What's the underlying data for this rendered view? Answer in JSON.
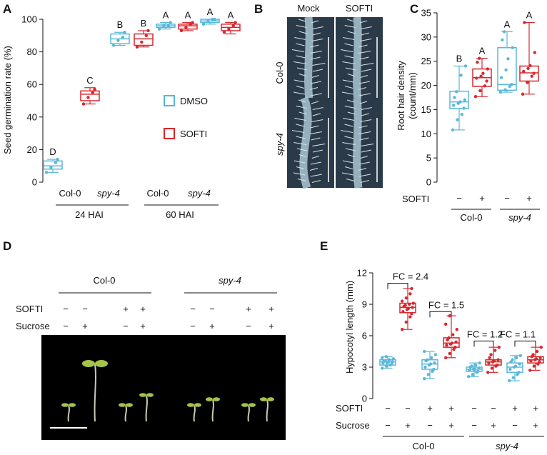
{
  "panels": {
    "a": "A",
    "b": "B",
    "c": "C",
    "d": "D",
    "e": "E"
  },
  "colors": {
    "dmso": "#5ab8d8",
    "softi": "#d8282e"
  },
  "chart_data": [
    {
      "id": "A",
      "type": "box",
      "ylabel": "Seed germination rate (%)",
      "ylim": [
        0,
        100
      ],
      "yticks": [
        0,
        20,
        40,
        60,
        80,
        100
      ],
      "legend": [
        {
          "label": "DMSO",
          "color": "#5ab8d8"
        },
        {
          "label": "SOFTI",
          "color": "#d8282e"
        }
      ],
      "legend_position": "right",
      "genotype_labels": [
        "Col-0",
        "spy-4",
        "Col-0",
        "spy-4"
      ],
      "time_labels": [
        "24 HAI",
        "60 HAI"
      ],
      "groups": [
        {
          "genotype": "Col-0",
          "time": "24 HAI",
          "treatment": "DMSO",
          "color": "#5ab8d8",
          "q1": 8,
          "median": 10,
          "q3": 13,
          "whisker": [
            6,
            14
          ],
          "points": [
            6,
            9,
            12,
            14
          ],
          "letter": "D"
        },
        {
          "genotype": "Col-0",
          "time": "24 HAI",
          "treatment": "SOFTI",
          "color": "#d8282e",
          "q1": 50,
          "median": 54,
          "q3": 56,
          "whisker": [
            48,
            58
          ],
          "points": [
            48,
            52,
            55,
            57
          ],
          "letter": "C"
        },
        {
          "genotype": "spy-4",
          "time": "24 HAI",
          "treatment": "DMSO",
          "color": "#5ab8d8",
          "q1": 85,
          "median": 88,
          "q3": 91,
          "whisker": [
            84,
            92
          ],
          "points": [
            84,
            87,
            89,
            92
          ],
          "letter": "B"
        },
        {
          "genotype": "spy-4",
          "time": "24 HAI",
          "treatment": "SOFTI",
          "color": "#d8282e",
          "q1": 84,
          "median": 88,
          "q3": 91,
          "whisker": [
            83,
            93
          ],
          "points": [
            83,
            86,
            90,
            93
          ],
          "letter": "B"
        },
        {
          "genotype": "Col-0",
          "time": "60 HAI",
          "treatment": "DMSO",
          "color": "#5ab8d8",
          "q1": 95,
          "median": 96,
          "q3": 97,
          "whisker": [
            94,
            98
          ],
          "points": [
            94,
            96,
            96,
            98
          ],
          "letter": "A"
        },
        {
          "genotype": "Col-0",
          "time": "60 HAI",
          "treatment": "SOFTI",
          "color": "#d8282e",
          "q1": 94,
          "median": 96,
          "q3": 97,
          "whisker": [
            93,
            98
          ],
          "points": [
            93,
            95,
            97,
            98
          ],
          "letter": "A"
        },
        {
          "genotype": "spy-4",
          "time": "60 HAI",
          "treatment": "DMSO",
          "color": "#5ab8d8",
          "q1": 98,
          "median": 99,
          "q3": 100,
          "whisker": [
            97,
            100
          ],
          "points": [
            97,
            99,
            100,
            100
          ],
          "letter": "A"
        },
        {
          "genotype": "spy-4",
          "time": "60 HAI",
          "treatment": "SOFTI",
          "color": "#d8282e",
          "q1": 93,
          "median": 95,
          "q3": 97,
          "whisker": [
            91,
            98
          ],
          "points": [
            92,
            94,
            96,
            98
          ],
          "letter": "A"
        }
      ]
    },
    {
      "id": "C",
      "type": "box",
      "ylabel": "Root hair density",
      "ylabel2": "(count/mm)",
      "ylim": [
        0,
        35
      ],
      "yticks": [
        0,
        5,
        10,
        15,
        20,
        25,
        30,
        35
      ],
      "row_label": "SOFTI",
      "treatment_marks": [
        "−",
        "+",
        "−",
        "+"
      ],
      "genotype_labels": [
        "Col-0",
        "spy-4"
      ],
      "groups": [
        {
          "genotype": "Col-0",
          "softi": "−",
          "color": "#5ab8d8",
          "q1": 15.2,
          "median": 16.6,
          "q3": 18.8,
          "whisker": [
            10.8,
            24.0
          ],
          "points": [
            10.8,
            12.9,
            14.0,
            15.3,
            15.9,
            16.3,
            16.6,
            17.0,
            17.5,
            18.7,
            22.1,
            24.0
          ],
          "letter": "B"
        },
        {
          "genotype": "Col-0",
          "softi": "+",
          "color": "#d8282e",
          "q1": 19.8,
          "median": 21.6,
          "q3": 23.4,
          "whisker": [
            17.7,
            25.6
          ],
          "points": [
            17.7,
            18.9,
            19.9,
            20.9,
            21.5,
            21.9,
            22.5,
            23.4,
            24.8,
            25.6
          ],
          "letter": "A"
        },
        {
          "genotype": "spy-4",
          "softi": "−",
          "color": "#5ab8d8",
          "q1": 19.0,
          "median": 20.2,
          "q3": 27.8,
          "whisker": [
            18.6,
            31.1
          ],
          "points": [
            18.6,
            19.1,
            19.8,
            20.2,
            21.6,
            23.2,
            25.5,
            27.8,
            29.4,
            31.1
          ],
          "letter": "A"
        },
        {
          "genotype": "spy-4",
          "softi": "+",
          "color": "#d8282e",
          "q1": 20.9,
          "median": 22.6,
          "q3": 24.0,
          "whisker": [
            18.2,
            33.0
          ],
          "points": [
            18.2,
            20.6,
            21.9,
            22.5,
            22.9,
            23.5,
            24.1,
            26.8,
            33.0
          ],
          "letter": "A"
        }
      ]
    },
    {
      "id": "E",
      "type": "box",
      "ylabel": "Hypocotyl length (mm)",
      "ylim": [
        0,
        12
      ],
      "yticks": [
        0,
        3,
        6,
        9,
        12
      ],
      "row_labels": [
        "SOFTI",
        "Sucrose"
      ],
      "softi_marks": [
        "−",
        "−",
        "+",
        "+",
        "−",
        "−",
        "+",
        "+"
      ],
      "sucrose_marks": [
        "−",
        "+",
        "−",
        "+",
        "−",
        "+",
        "−",
        "+"
      ],
      "genotype_labels": [
        "Col-0",
        "spy-4"
      ],
      "fold_changes": [
        "FC = 2.4",
        "FC = 1.5",
        "FC = 1.2",
        "FC = 1.1"
      ],
      "groups": [
        {
          "color": "#5ab8d8",
          "q1": 3.2,
          "median": 3.5,
          "q3": 3.7,
          "whisker": [
            2.9,
            4.0
          ],
          "points": [
            2.9,
            3.1,
            3.2,
            3.3,
            3.4,
            3.4,
            3.5,
            3.5,
            3.6,
            3.6,
            3.7,
            3.8,
            3.9,
            4.0
          ]
        },
        {
          "color": "#d8282e",
          "q1": 8.2,
          "median": 8.7,
          "q3": 9.1,
          "whisker": [
            6.6,
            10.5
          ],
          "points": [
            6.6,
            7.3,
            7.8,
            8.1,
            8.3,
            8.5,
            8.6,
            8.7,
            8.8,
            8.9,
            9.0,
            9.1,
            9.3,
            9.6,
            10.0,
            10.5
          ]
        },
        {
          "color": "#5ab8d8",
          "q1": 2.8,
          "median": 3.3,
          "q3": 3.7,
          "whisker": [
            1.9,
            4.5
          ],
          "points": [
            1.9,
            2.3,
            2.6,
            2.8,
            3.0,
            3.2,
            3.3,
            3.4,
            3.6,
            3.7,
            3.9,
            4.2,
            4.5
          ]
        },
        {
          "color": "#d8282e",
          "q1": 4.9,
          "median": 5.3,
          "q3": 5.8,
          "whisker": [
            3.9,
            7.9
          ],
          "points": [
            3.9,
            4.3,
            4.7,
            4.9,
            5.1,
            5.2,
            5.3,
            5.4,
            5.6,
            5.8,
            6.1,
            6.6,
            7.1,
            7.9
          ]
        },
        {
          "color": "#5ab8d8",
          "q1": 2.6,
          "median": 2.8,
          "q3": 3.0,
          "whisker": [
            2.1,
            3.4
          ],
          "points": [
            2.1,
            2.3,
            2.5,
            2.6,
            2.7,
            2.8,
            2.8,
            2.9,
            3.0,
            3.1,
            3.2,
            3.4
          ]
        },
        {
          "color": "#d8282e",
          "q1": 3.2,
          "median": 3.5,
          "q3": 3.7,
          "whisker": [
            2.5,
            4.9
          ],
          "points": [
            2.5,
            2.9,
            3.1,
            3.2,
            3.4,
            3.5,
            3.6,
            3.7,
            3.9,
            4.2,
            4.6,
            4.9
          ]
        },
        {
          "color": "#5ab8d8",
          "q1": 2.5,
          "median": 3.0,
          "q3": 3.4,
          "whisker": [
            1.7,
            4.1
          ],
          "points": [
            1.7,
            2.0,
            2.3,
            2.5,
            2.8,
            3.0,
            3.1,
            3.3,
            3.5,
            3.7,
            3.9,
            4.1
          ]
        },
        {
          "color": "#d8282e",
          "q1": 3.4,
          "median": 3.7,
          "q3": 4.0,
          "whisker": [
            2.7,
            4.9
          ],
          "points": [
            2.7,
            3.1,
            3.3,
            3.5,
            3.6,
            3.7,
            3.8,
            3.9,
            4.0,
            4.2,
            4.5,
            4.9
          ]
        }
      ]
    }
  ],
  "panel_b": {
    "columns": [
      "Mock",
      "SOFTI"
    ],
    "rows": [
      "Col-0",
      "spy-4"
    ]
  },
  "panel_d": {
    "genotypes": [
      "Col-0",
      "spy-4"
    ],
    "row_labels": [
      "SOFTI",
      "Sucrose"
    ],
    "softi_marks": [
      "−",
      "−",
      "+",
      "+",
      "−",
      "−",
      "+",
      "+"
    ],
    "sucrose_marks": [
      "−",
      "+",
      "−",
      "+",
      "−",
      "+",
      "−",
      "+"
    ]
  }
}
